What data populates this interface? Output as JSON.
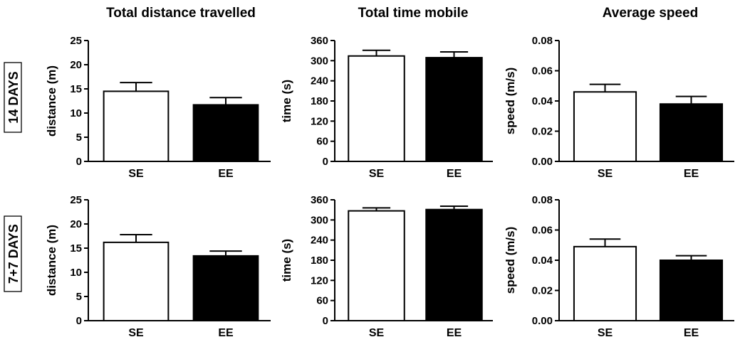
{
  "column_titles": [
    "Total distance travelled",
    "Total time mobile",
    "Average speed"
  ],
  "row_labels": [
    "14 DAYS",
    "7+7 DAYS"
  ],
  "colors": {
    "SE": "#ffffff",
    "EE": "#000000",
    "stroke": "#000000"
  },
  "chart_data": [
    {
      "type": "bar",
      "title": "Total distance travelled",
      "row": "14 DAYS",
      "categories": [
        "SE",
        "EE"
      ],
      "values": [
        14.5,
        11.7
      ],
      "errors": [
        1.8,
        1.5
      ],
      "xlabel": "",
      "ylabel": "distance (m)",
      "ylim": [
        0,
        25
      ],
      "yticks": [
        0,
        5,
        10,
        15,
        20,
        25
      ],
      "ytick_labels": [
        "0",
        "5",
        "10",
        "15",
        "20",
        "25"
      ]
    },
    {
      "type": "bar",
      "title": "Total time mobile",
      "row": "14 DAYS",
      "categories": [
        "SE",
        "EE"
      ],
      "values": [
        314,
        309
      ],
      "errors": [
        17,
        17
      ],
      "xlabel": "",
      "ylabel": "time (s)",
      "ylim": [
        0,
        360
      ],
      "yticks": [
        0,
        60,
        120,
        180,
        240,
        300,
        360
      ],
      "ytick_labels": [
        "0",
        "60",
        "120",
        "180",
        "240",
        "300",
        "360"
      ]
    },
    {
      "type": "bar",
      "title": "Average speed",
      "row": "14 DAYS",
      "categories": [
        "SE",
        "EE"
      ],
      "values": [
        0.046,
        0.038
      ],
      "errors": [
        0.005,
        0.005
      ],
      "xlabel": "",
      "ylabel": "speed (m/s)",
      "ylim": [
        0,
        0.08
      ],
      "yticks": [
        0,
        0.02,
        0.04,
        0.06,
        0.08
      ],
      "ytick_labels": [
        "0.00",
        "0.02",
        "0.04",
        "0.06",
        "0.08"
      ]
    },
    {
      "type": "bar",
      "title": "",
      "row": "7+7 DAYS",
      "categories": [
        "SE",
        "EE"
      ],
      "values": [
        16.2,
        13.4
      ],
      "errors": [
        1.6,
        1.0
      ],
      "xlabel": "",
      "ylabel": "distance (m)",
      "ylim": [
        0,
        25
      ],
      "yticks": [
        0,
        5,
        10,
        15,
        20,
        25
      ],
      "ytick_labels": [
        "0",
        "5",
        "10",
        "15",
        "20",
        "25"
      ]
    },
    {
      "type": "bar",
      "title": "",
      "row": "7+7 DAYS",
      "categories": [
        "SE",
        "EE"
      ],
      "values": [
        327,
        331
      ],
      "errors": [
        9,
        10
      ],
      "xlabel": "",
      "ylabel": "time (s)",
      "ylim": [
        0,
        360
      ],
      "yticks": [
        0,
        60,
        120,
        180,
        240,
        300,
        360
      ],
      "ytick_labels": [
        "0",
        "60",
        "120",
        "180",
        "240",
        "300",
        "360"
      ]
    },
    {
      "type": "bar",
      "title": "",
      "row": "7+7 DAYS",
      "categories": [
        "SE",
        "EE"
      ],
      "values": [
        0.049,
        0.04
      ],
      "errors": [
        0.005,
        0.003
      ],
      "xlabel": "",
      "ylabel": "speed (m/s)",
      "ylim": [
        0,
        0.08
      ],
      "yticks": [
        0,
        0.02,
        0.04,
        0.06,
        0.08
      ],
      "ytick_labels": [
        "0.00",
        "0.02",
        "0.04",
        "0.06",
        "0.08"
      ]
    }
  ]
}
